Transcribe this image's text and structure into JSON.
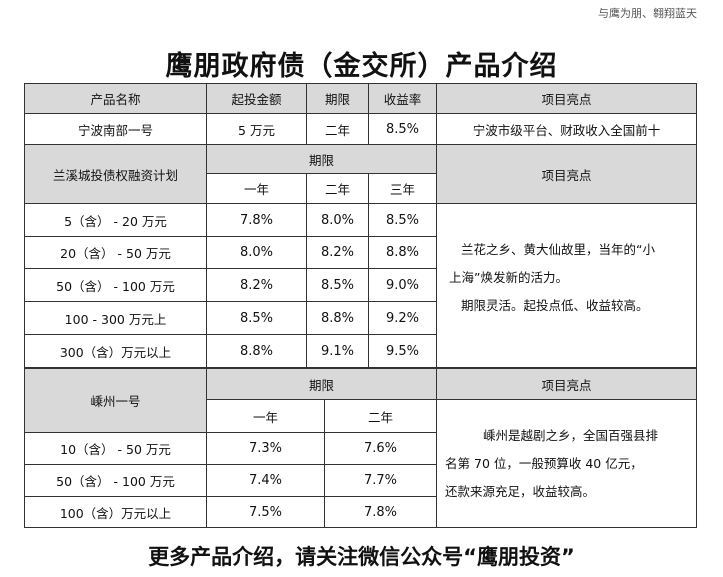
{
  "header": {
    "slogan": "与鹰为朋、翱翔蓝天",
    "title": "鹰朋政府债（金交所）产品介绍"
  },
  "table1": {
    "headers": [
      "产品名称",
      "起投金额",
      "期限",
      "收益率",
      "项目亮点"
    ],
    "row": [
      "宁波南部一号",
      "5 万元",
      "二年",
      "8.5%",
      "宁波市级平台、财政收入全国前十"
    ]
  },
  "table2": {
    "name": "兰溪城投债权融资计划",
    "period_label": "期限",
    "highlight_label": "项目亮点",
    "terms": [
      "一年",
      "二年",
      "三年"
    ],
    "rows": [
      {
        "range": "5（含） - 20 万元",
        "r1": "7.8%",
        "r2": "8.0%",
        "r3": "8.5%"
      },
      {
        "range": "20（含） - 50 万元",
        "r1": "8.0%",
        "r2": "8.2%",
        "r3": "8.8%"
      },
      {
        "range": "50（含） - 100 万元",
        "r1": "8.2%",
        "r2": "8.5%",
        "r3": "9.0%"
      },
      {
        "range": "100 - 300 万元上",
        "r1": "8.5%",
        "r2": "8.8%",
        "r3": "9.2%"
      },
      {
        "range": "300（含）万元以上",
        "r1": "8.8%",
        "r2": "9.1%",
        "r3": "9.5%"
      }
    ],
    "highlight_lines": [
      "兰花之乡、黄大仙故里，当年的“小",
      "上海”焕发新的活力。",
      "期限灵活。起投点低、收益较高。"
    ]
  },
  "table3": {
    "name": "嵊州一号",
    "period_label": "期限",
    "highlight_label": "项目亮点",
    "terms": [
      "一年",
      "二年"
    ],
    "rows": [
      {
        "range": "10（含） - 50 万元",
        "r1": "7.3%",
        "r2": "7.6%"
      },
      {
        "range": "50（含） - 100 万元",
        "r1": "7.4%",
        "r2": "7.7%"
      },
      {
        "range": "100（含）万元以上",
        "r1": "7.5%",
        "r2": "7.8%"
      }
    ],
    "highlight_lines": [
      "嵊州是越剧之乡，全国百强县排",
      "名第 70 位，一般预算收 40 亿元，",
      "还款来源充足，收益较高。"
    ]
  },
  "footer": {
    "text": "更多产品介绍，请关注微信公众号“鹰朋投资”"
  }
}
